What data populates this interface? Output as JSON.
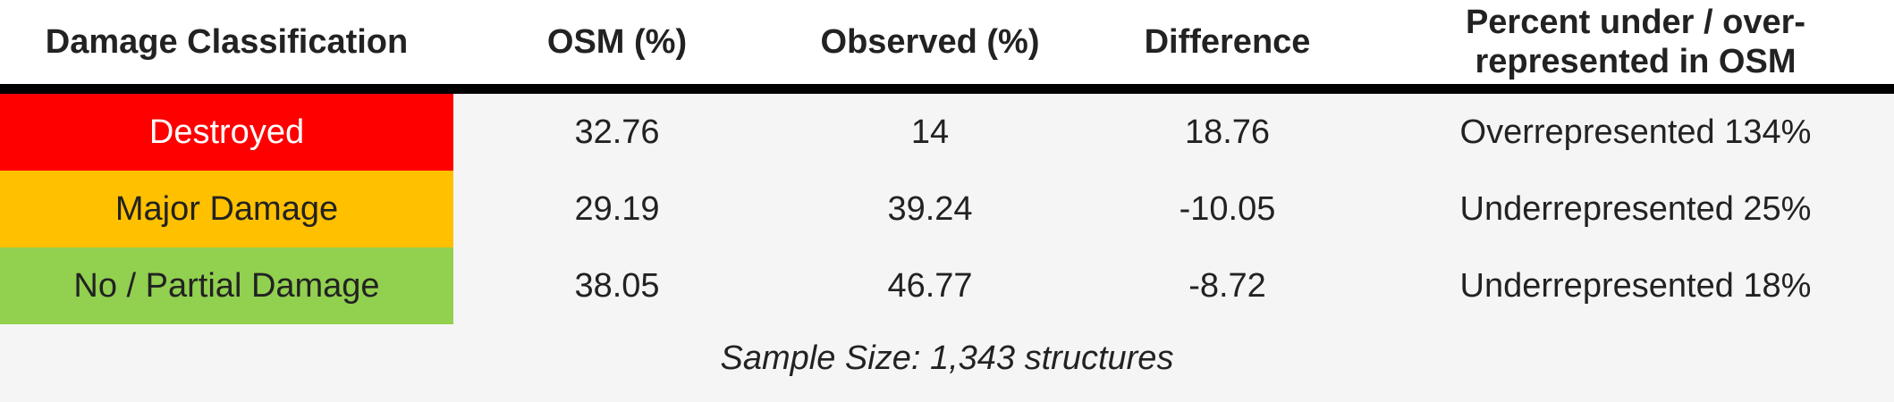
{
  "table": {
    "headers": {
      "classification": "Damage Classification",
      "osm": "OSM (%)",
      "observed": "Observed (%)",
      "difference": "Difference",
      "percent_line1": "Percent under / over-",
      "percent_line2": "represented in OSM"
    },
    "rows": [
      {
        "classification": "Destroyed",
        "osm": "32.76",
        "observed": "14",
        "difference": "18.76",
        "percent": "Overrepresented 134%",
        "color": "#ff0000",
        "text_color": "#ffffff"
      },
      {
        "classification": "Major Damage",
        "osm": "29.19",
        "observed": "39.24",
        "difference": "-10.05",
        "percent": "Underrepresented 25%",
        "color": "#ffc000",
        "text_color": "#222222"
      },
      {
        "classification": "No / Partial Damage",
        "osm": "38.05",
        "observed": "46.77",
        "difference": "-8.72",
        "percent": "Underrepresented 18%",
        "color": "#92d050",
        "text_color": "#222222"
      }
    ]
  },
  "caption": "Sample Size: 1,343 structures"
}
